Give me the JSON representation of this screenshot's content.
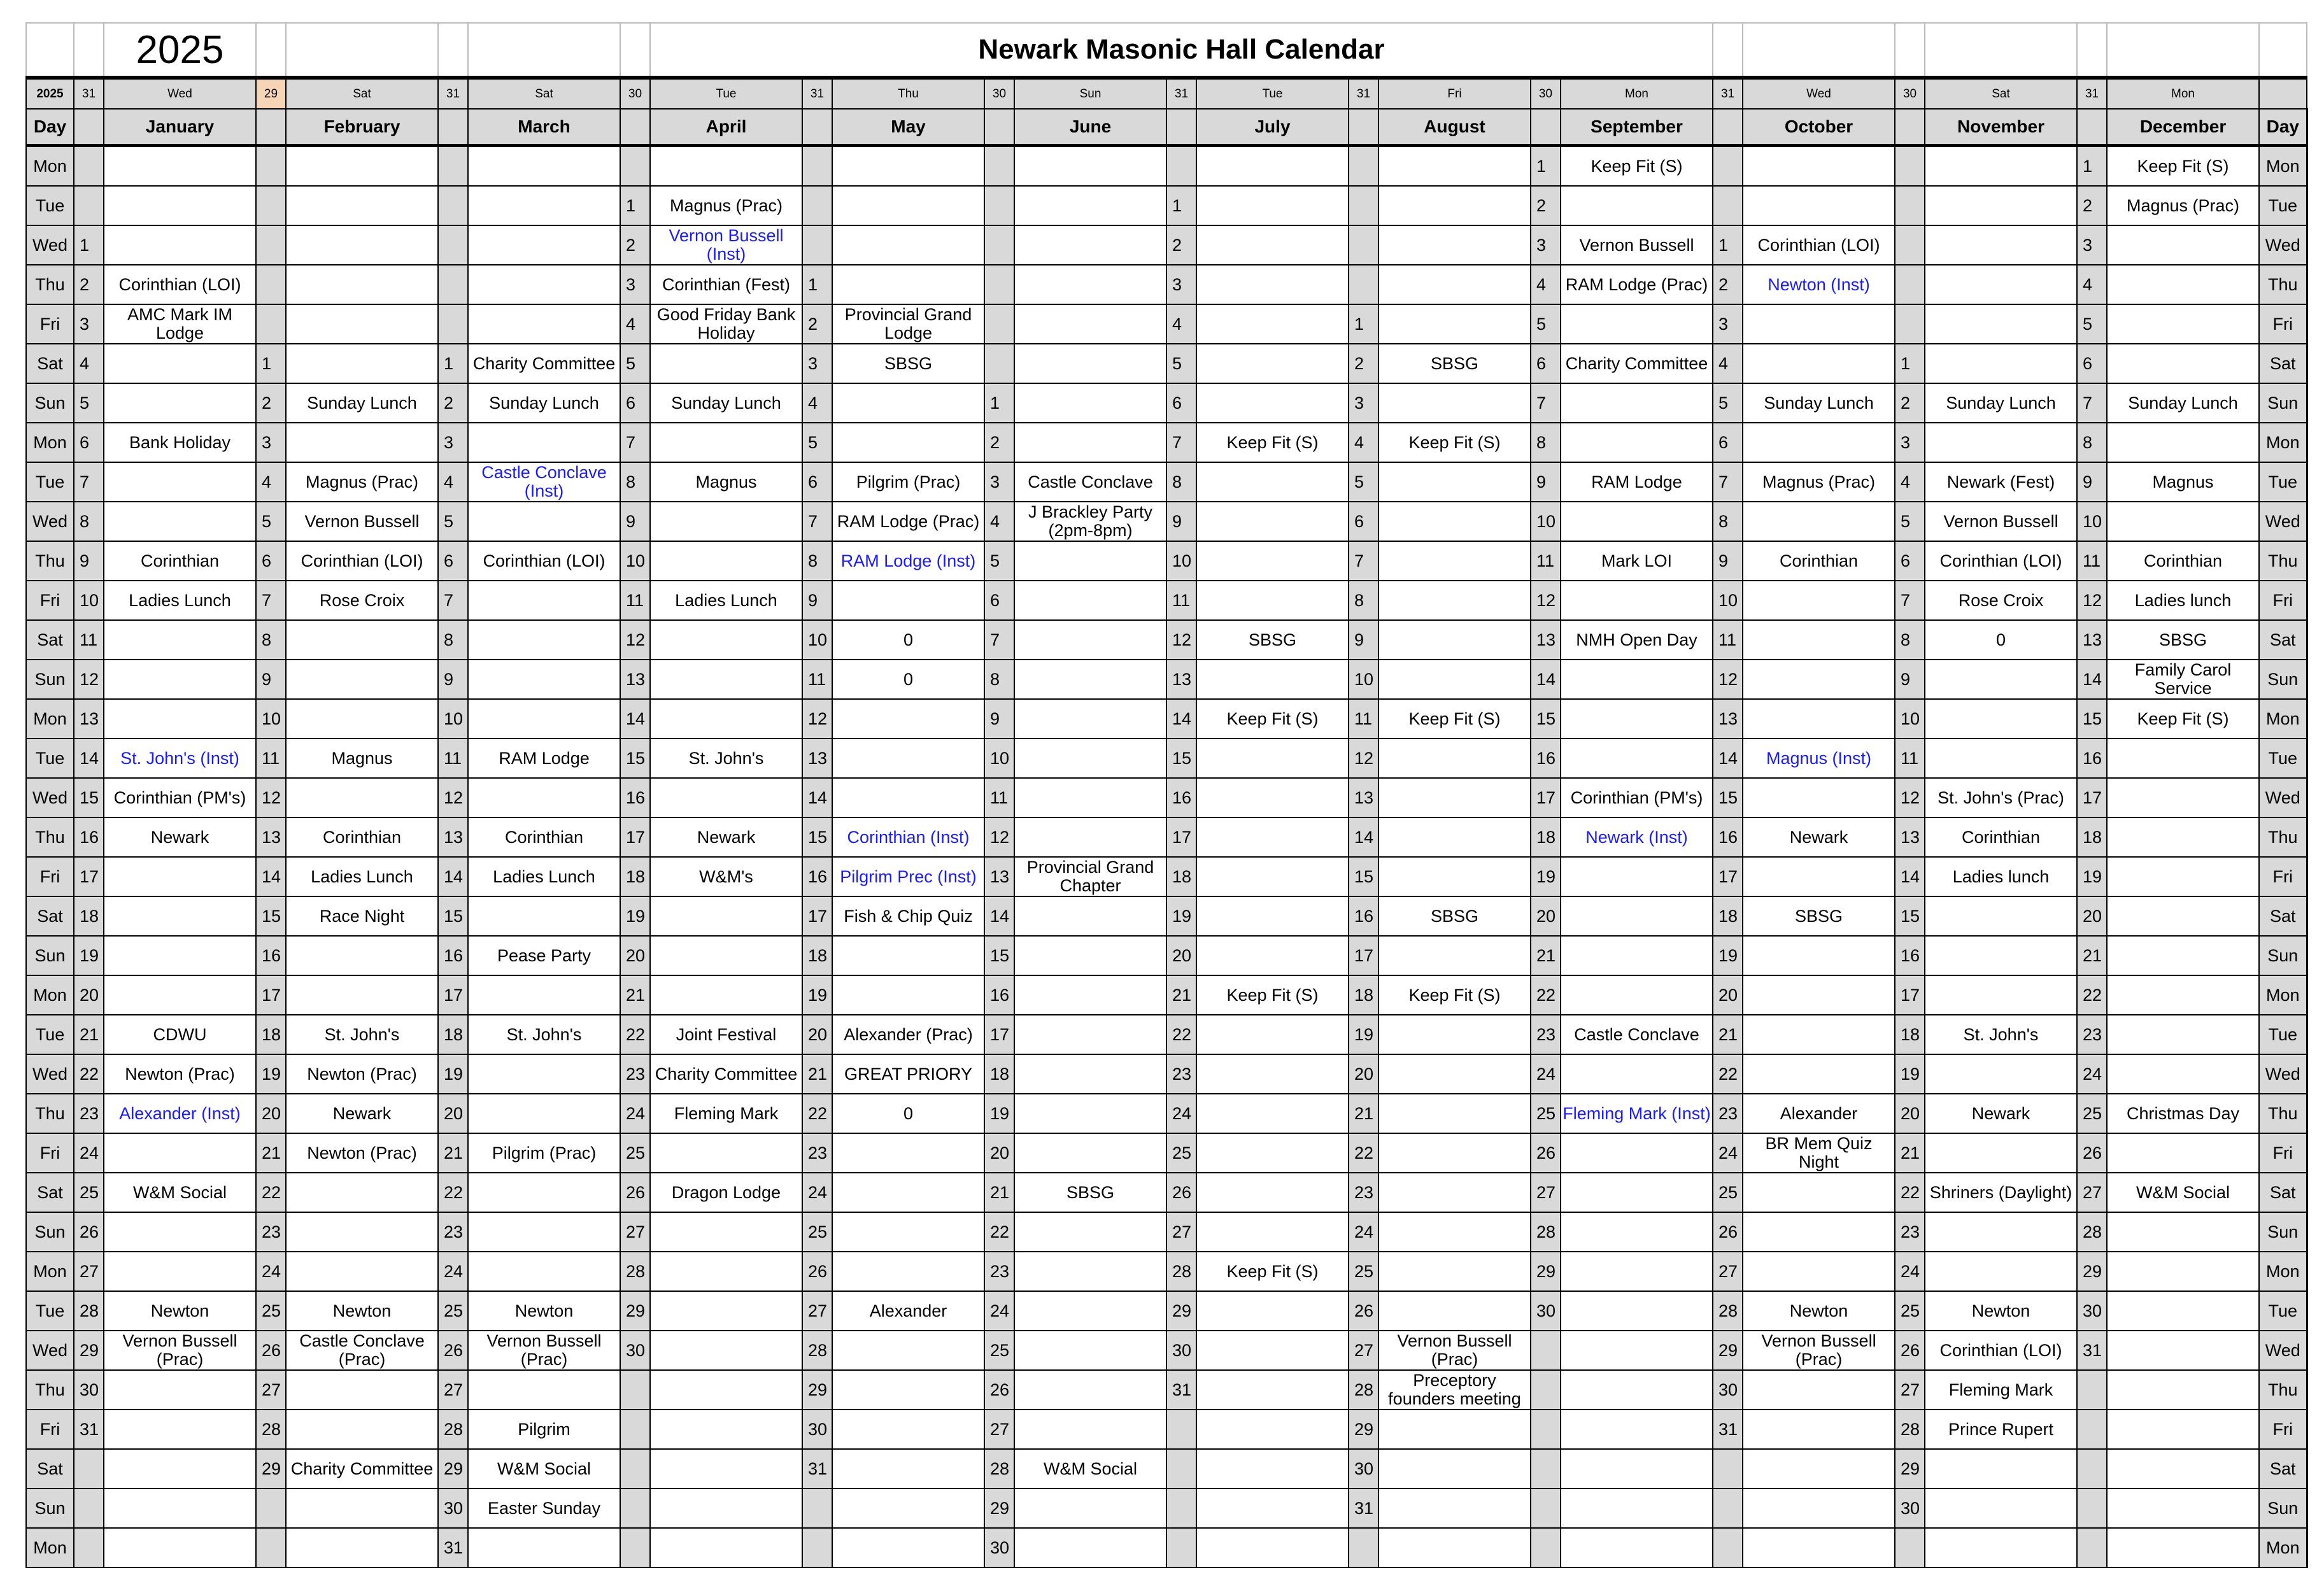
{
  "title": "Newark Masonic Hall Calendar",
  "year": "2025",
  "day_header": "Day",
  "colors": {
    "highlight_text": "#1a1aff",
    "header_gray": "#d9d9d9",
    "feb_count_bg": "#f5d5b5",
    "feb_count_text": "#e0301e",
    "year_label": "#2a6ebb"
  },
  "weekdays": [
    "Mon",
    "Tue",
    "Wed",
    "Thu",
    "Fri",
    "Sat",
    "Sun",
    "Mon",
    "Tue",
    "Wed",
    "Thu",
    "Fri",
    "Sat",
    "Sun",
    "Mon",
    "Tue",
    "Wed",
    "Thu",
    "Fri",
    "Sat",
    "Sun",
    "Mon",
    "Tue",
    "Wed",
    "Thu",
    "Fri",
    "Sat",
    "Sun",
    "Mon",
    "Tue",
    "Wed",
    "Thu",
    "Fri",
    "Sat",
    "Sun",
    "Mon"
  ],
  "months": [
    {
      "name": "January",
      "days": 31,
      "first_day": "Wed",
      "offset": 2,
      "events": [
        {
          "day": 2,
          "text": "Corinthian (LOI)"
        },
        {
          "day": 3,
          "text": "AMC Mark IM Lodge"
        },
        {
          "day": 6,
          "text": "Bank Holiday"
        },
        {
          "day": 9,
          "text": "Corinthian"
        },
        {
          "day": 10,
          "text": "Ladies Lunch"
        },
        {
          "day": 14,
          "text": "St. John's (Inst)",
          "highlight": true
        },
        {
          "day": 15,
          "text": "Corinthian (PM's)"
        },
        {
          "day": 16,
          "text": "Newark"
        },
        {
          "day": 21,
          "text": "CDWU"
        },
        {
          "day": 22,
          "text": "Newton (Prac)"
        },
        {
          "day": 23,
          "text": "Alexander (Inst)",
          "highlight": true
        },
        {
          "day": 25,
          "text": "W&M Social"
        },
        {
          "day": 28,
          "text": "Newton"
        },
        {
          "day": 29,
          "text": "Vernon Bussell (Prac)"
        }
      ]
    },
    {
      "name": "February",
      "days": 29,
      "first_day": "Sat",
      "offset": 5,
      "events": [
        {
          "day": 2,
          "text": "Sunday Lunch"
        },
        {
          "day": 4,
          "text": "Magnus (Prac)"
        },
        {
          "day": 5,
          "text": "Vernon Bussell"
        },
        {
          "day": 6,
          "text": "Corinthian (LOI)"
        },
        {
          "day": 7,
          "text": "Rose Croix"
        },
        {
          "day": 11,
          "text": "Magnus"
        },
        {
          "day": 13,
          "text": "Corinthian"
        },
        {
          "day": 14,
          "text": "Ladies Lunch"
        },
        {
          "day": 15,
          "text": "Race Night"
        },
        {
          "day": 18,
          "text": "St. John's"
        },
        {
          "day": 19,
          "text": "Newton (Prac)"
        },
        {
          "day": 20,
          "text": "Newark"
        },
        {
          "day": 21,
          "text": "Newton (Prac)"
        },
        {
          "day": 25,
          "text": "Newton"
        },
        {
          "day": 26,
          "text": "Castle Conclave (Prac)"
        },
        {
          "day": 29,
          "text": "Charity Committee"
        }
      ]
    },
    {
      "name": "March",
      "days": 31,
      "first_day": "Sat",
      "offset": 5,
      "events": [
        {
          "day": 1,
          "text": "Charity Committee"
        },
        {
          "day": 2,
          "text": "Sunday Lunch"
        },
        {
          "day": 4,
          "text": "Castle Conclave (Inst)",
          "highlight": true
        },
        {
          "day": 6,
          "text": "Corinthian (LOI)"
        },
        {
          "day": 11,
          "text": "RAM Lodge"
        },
        {
          "day": 13,
          "text": "Corinthian"
        },
        {
          "day": 14,
          "text": "Ladies Lunch"
        },
        {
          "day": 16,
          "text": "Pease Party"
        },
        {
          "day": 18,
          "text": "St. John's"
        },
        {
          "day": 21,
          "text": "Pilgrim (Prac)"
        },
        {
          "day": 25,
          "text": "Newton"
        },
        {
          "day": 26,
          "text": "Vernon Bussell (Prac)"
        },
        {
          "day": 28,
          "text": "Pilgrim"
        },
        {
          "day": 29,
          "text": "W&M Social"
        },
        {
          "day": 30,
          "text": "Easter Sunday"
        }
      ]
    },
    {
      "name": "April",
      "days": 30,
      "first_day": "Tue",
      "offset": 1,
      "events": [
        {
          "day": 1,
          "text": "Magnus (Prac)"
        },
        {
          "day": 2,
          "text": "Vernon Bussell (Inst)",
          "highlight": true
        },
        {
          "day": 3,
          "text": "Corinthian (Fest)"
        },
        {
          "day": 4,
          "text": "Good Friday Bank Holiday"
        },
        {
          "day": 6,
          "text": "Sunday Lunch"
        },
        {
          "day": 8,
          "text": "Magnus"
        },
        {
          "day": 11,
          "text": "Ladies Lunch"
        },
        {
          "day": 15,
          "text": "St. John's"
        },
        {
          "day": 17,
          "text": "Newark"
        },
        {
          "day": 18,
          "text": "W&M's"
        },
        {
          "day": 22,
          "text": "Joint Festival"
        },
        {
          "day": 23,
          "text": "Charity Committee"
        },
        {
          "day": 24,
          "text": "Fleming Mark"
        },
        {
          "day": 26,
          "text": "Dragon Lodge"
        }
      ]
    },
    {
      "name": "May",
      "days": 31,
      "first_day": "Thu",
      "offset": 3,
      "events": [
        {
          "day": 2,
          "text": "Provincial Grand Lodge"
        },
        {
          "day": 3,
          "text": "SBSG"
        },
        {
          "day": 6,
          "text": "Pilgrim (Prac)"
        },
        {
          "day": 7,
          "text": "RAM Lodge (Prac)"
        },
        {
          "day": 8,
          "text": "RAM Lodge (Inst)",
          "highlight": true
        },
        {
          "day": 10,
          "text": "0"
        },
        {
          "day": 11,
          "text": "0"
        },
        {
          "day": 15,
          "text": "Corinthian (Inst)",
          "highlight": true
        },
        {
          "day": 16,
          "text": "Pilgrim Prec (Inst)",
          "highlight": true
        },
        {
          "day": 17,
          "text": "Fish & Chip Quiz"
        },
        {
          "day": 20,
          "text": "Alexander (Prac)"
        },
        {
          "day": 21,
          "text": "GREAT PRIORY"
        },
        {
          "day": 22,
          "text": "0"
        },
        {
          "day": 27,
          "text": "Alexander"
        }
      ]
    },
    {
      "name": "June",
      "days": 30,
      "first_day": "Sun",
      "offset": 6,
      "events": [
        {
          "day": 3,
          "text": "Castle Conclave"
        },
        {
          "day": 4,
          "text": "J Brackley Party (2pm-8pm)"
        },
        {
          "day": 13,
          "text": "Provincial Grand Chapter"
        },
        {
          "day": 21,
          "text": "SBSG"
        },
        {
          "day": 28,
          "text": "W&M Social"
        }
      ]
    },
    {
      "name": "July",
      "days": 31,
      "first_day": "Tue",
      "offset": 1,
      "events": [
        {
          "day": 7,
          "text": "Keep Fit (S)"
        },
        {
          "day": 12,
          "text": "SBSG"
        },
        {
          "day": 14,
          "text": "Keep Fit (S)"
        },
        {
          "day": 21,
          "text": "Keep Fit (S)"
        },
        {
          "day": 28,
          "text": "Keep Fit (S)"
        }
      ]
    },
    {
      "name": "August",
      "days": 31,
      "first_day": "Fri",
      "offset": 4,
      "events": [
        {
          "day": 2,
          "text": "SBSG"
        },
        {
          "day": 4,
          "text": "Keep Fit (S)"
        },
        {
          "day": 11,
          "text": "Keep Fit (S)"
        },
        {
          "day": 16,
          "text": "SBSG"
        },
        {
          "day": 18,
          "text": "Keep Fit (S)"
        },
        {
          "day": 27,
          "text": "Vernon Bussell (Prac)"
        },
        {
          "day": 28,
          "text": "Preceptory founders meeting"
        }
      ]
    },
    {
      "name": "September",
      "days": 30,
      "first_day": "Mon",
      "offset": 0,
      "events": [
        {
          "day": 1,
          "text": "Keep Fit (S)"
        },
        {
          "day": 3,
          "text": "Vernon Bussell"
        },
        {
          "day": 4,
          "text": "RAM Lodge (Prac)"
        },
        {
          "day": 6,
          "text": "Charity Committee"
        },
        {
          "day": 9,
          "text": "RAM Lodge"
        },
        {
          "day": 11,
          "text": "Mark LOI"
        },
        {
          "day": 13,
          "text": "NMH Open Day"
        },
        {
          "day": 17,
          "text": "Corinthian (PM's)"
        },
        {
          "day": 18,
          "text": "Newark (Inst)",
          "highlight": true
        },
        {
          "day": 23,
          "text": "Castle Conclave"
        },
        {
          "day": 25,
          "text": "Fleming Mark (Inst)",
          "highlight": true
        }
      ]
    },
    {
      "name": "October",
      "days": 31,
      "first_day": "Wed",
      "offset": 2,
      "events": [
        {
          "day": 1,
          "text": "Corinthian (LOI)"
        },
        {
          "day": 2,
          "text": "Newton (Inst)",
          "highlight": true
        },
        {
          "day": 5,
          "text": "Sunday Lunch"
        },
        {
          "day": 7,
          "text": "Magnus (Prac)"
        },
        {
          "day": 9,
          "text": "Corinthian"
        },
        {
          "day": 14,
          "text": "Magnus (Inst)",
          "highlight": true
        },
        {
          "day": 16,
          "text": "Newark"
        },
        {
          "day": 18,
          "text": "SBSG"
        },
        {
          "day": 23,
          "text": "Alexander"
        },
        {
          "day": 24,
          "text": "BR Mem Quiz Night"
        },
        {
          "day": 28,
          "text": "Newton"
        },
        {
          "day": 29,
          "text": "Vernon Bussell (Prac)"
        }
      ]
    },
    {
      "name": "November",
      "days": 30,
      "first_day": "Sat",
      "offset": 5,
      "events": [
        {
          "day": 2,
          "text": "Sunday Lunch"
        },
        {
          "day": 4,
          "text": "Newark (Fest)"
        },
        {
          "day": 5,
          "text": "Vernon Bussell"
        },
        {
          "day": 6,
          "text": "Corinthian (LOI)"
        },
        {
          "day": 7,
          "text": "Rose Croix"
        },
        {
          "day": 8,
          "text": "0"
        },
        {
          "day": 12,
          "text": "St. John's (Prac)"
        },
        {
          "day": 13,
          "text": "Corinthian"
        },
        {
          "day": 14,
          "text": "Ladies lunch"
        },
        {
          "day": 18,
          "text": "St. John's"
        },
        {
          "day": 20,
          "text": "Newark"
        },
        {
          "day": 22,
          "text": "Shriners (Daylight)"
        },
        {
          "day": 25,
          "text": "Newton"
        },
        {
          "day": 26,
          "text": "Corinthian (LOI)"
        },
        {
          "day": 27,
          "text": "Fleming Mark"
        },
        {
          "day": 28,
          "text": "Prince Rupert"
        }
      ]
    },
    {
      "name": "December",
      "days": 31,
      "first_day": "Mon",
      "offset": 0,
      "events": [
        {
          "day": 1,
          "text": "Keep Fit (S)"
        },
        {
          "day": 2,
          "text": "Magnus (Prac)"
        },
        {
          "day": 7,
          "text": "Sunday Lunch"
        },
        {
          "day": 9,
          "text": "Magnus"
        },
        {
          "day": 11,
          "text": "Corinthian"
        },
        {
          "day": 12,
          "text": "Ladies lunch"
        },
        {
          "day": 13,
          "text": "SBSG"
        },
        {
          "day": 14,
          "text": "Family Carol Service"
        },
        {
          "day": 15,
          "text": "Keep Fit (S)"
        },
        {
          "day": 25,
          "text": "Christmas Day"
        },
        {
          "day": 27,
          "text": "W&M Social"
        }
      ]
    }
  ]
}
